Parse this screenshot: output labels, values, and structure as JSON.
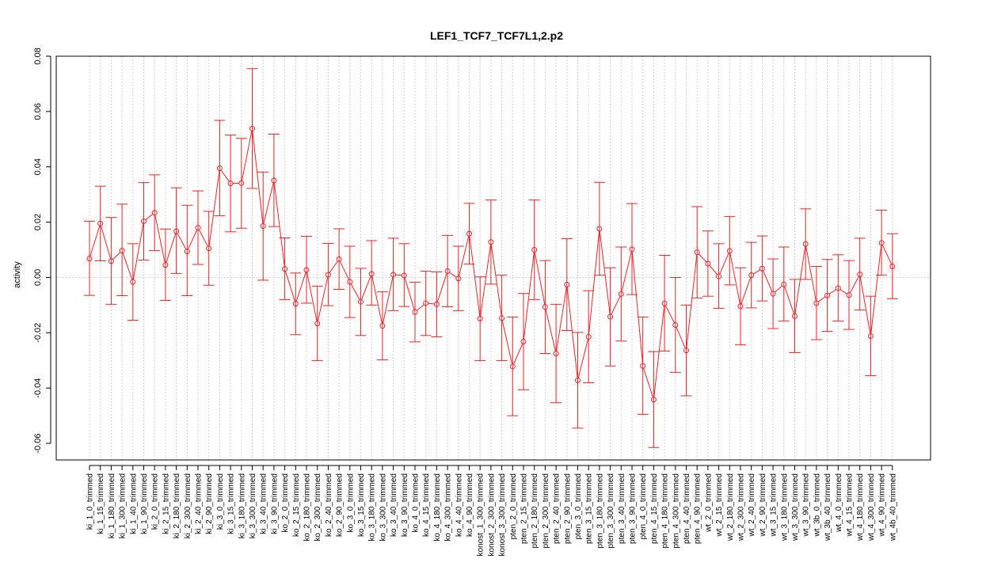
{
  "chart_data": {
    "type": "line",
    "title": "LEF1_TCF7_TCF7L1,2.p2",
    "xlabel": "",
    "ylabel": "activity",
    "ylim": [
      -0.066,
      0.08
    ],
    "yticks": [
      0.08,
      0.06,
      0.04,
      0.02,
      0.0,
      -0.02,
      -0.04,
      -0.06
    ],
    "ytick_labels": [
      "0.08",
      "0.06",
      "0.04",
      "0.02",
      "0.00",
      "-0.02",
      "-0.04",
      "-0.06"
    ],
    "grid": true,
    "colors": {
      "series": "#e8262b",
      "grid": "#d3d3d3"
    },
    "categories": [
      "ki_1_0_trimmed",
      "ki_1_15_trimmed",
      "ki_1_180_trimmed",
      "ki_1_300_trimmed",
      "ki_1_40_trimmed",
      "ki_1_90_trimmed",
      "ki_2_0_trimmed",
      "ki_2_15_trimmed",
      "ki_2_180_trimmed",
      "ki_2_300_trimmed",
      "ki_2_40_trimmed",
      "ki_2_90_trimmed",
      "ki_3_0_trimmed",
      "ki_3_15_trimmed",
      "ki_3_180_trimmed",
      "ki_3_300_trimmed",
      "ki_3_40_trimmed",
      "ki_3_90_trimmed",
      "ko_2_0_trimmed",
      "ko_2_15_trimmed",
      "ko_2_180_trimmed",
      "ko_2_300_trimmed",
      "ko_2_40_trimmed",
      "ko_2_90_trimmed",
      "ko_3_0_trimmed",
      "ko_3_15_trimmed",
      "ko_3_180_trimmed",
      "ko_3_300_trimmed",
      "ko_3_40_trimmed",
      "ko_3_90_trimmed",
      "ko_4_0_trimmed",
      "ko_4_15_trimmed",
      "ko_4_180_trimmed",
      "ko_4_300_trimmed",
      "ko_4_40_trimmed",
      "ko_4_90_trimmed",
      "konost_1_300_trimmed",
      "konost_2_300_trimmed",
      "konost_3_300_trimmed",
      "pten_2_0_trimmed",
      "pten_2_15_trimmed",
      "pten_2_180_trimmed",
      "pten_2_300_trimmed",
      "pten_2_40_trimmed",
      "pten_2_90_trimmed",
      "pten_3_0_trimmed",
      "pten_3_15_trimmed",
      "pten_3_180_trimmed",
      "pten_3_300_trimmed",
      "pten_3_40_trimmed",
      "pten_3_90_trimmed",
      "pten_4_0_trimmed",
      "pten_4_15_trimmed",
      "pten_4_180_trimmed",
      "pten_4_300_trimmed",
      "pten_4_40_trimmed",
      "pten_4_90_trimmed",
      "wt_2_0_trimmed",
      "wt_2_15_trimmed",
      "wt_2_180_trimmed",
      "wt_2_300_trimmed",
      "wt_2_40_trimmed",
      "wt_2_90_trimmed",
      "wt_3_15_trimmed",
      "wt_3_180_trimmed",
      "wt_3_300_trimmed",
      "wt_3_90_trimmed",
      "wt_3b_0_trimmed",
      "wt_3b_40_trimmed",
      "wt_4_0_trimmed",
      "wt_4_15_trimmed",
      "wt_4_180_trimmed",
      "wt_4_300_trimmed",
      "wt_4_90_trimmed",
      "wt_4b_40_trimmed"
    ],
    "values": [
      0.0068,
      0.0195,
      0.0059,
      0.0097,
      -0.0016,
      0.0203,
      0.0234,
      0.0045,
      0.0167,
      0.0094,
      0.018,
      0.0105,
      0.0395,
      0.034,
      0.0341,
      0.0538,
      0.0186,
      0.0351,
      0.0031,
      -0.0095,
      0.0027,
      -0.0167,
      0.001,
      0.0066,
      -0.0016,
      -0.0088,
      0.0013,
      -0.0175,
      0.001,
      0.0007,
      -0.0125,
      -0.0093,
      -0.0097,
      0.0023,
      -0.0004,
      0.0158,
      -0.0149,
      0.0128,
      -0.0147,
      -0.0322,
      -0.0232,
      0.01,
      -0.0107,
      -0.0275,
      -0.0026,
      -0.0372,
      -0.0215,
      0.0176,
      -0.0142,
      -0.006,
      0.0102,
      -0.032,
      -0.0442,
      -0.0094,
      -0.0172,
      -0.0264,
      0.0091,
      0.005,
      0.0004,
      0.0096,
      -0.0104,
      0.0008,
      0.0032,
      -0.0059,
      -0.0025,
      -0.014,
      0.0121,
      -0.0093,
      -0.0065,
      -0.0039,
      -0.0064,
      0.0011,
      -0.0212,
      0.0125,
      0.004
    ],
    "lower": [
      -0.0065,
      0.006,
      -0.0097,
      -0.0066,
      -0.0155,
      0.0063,
      0.0097,
      -0.0083,
      0.0014,
      -0.0066,
      0.0047,
      -0.0028,
      0.0223,
      0.0165,
      0.0178,
      0.0322,
      -0.001,
      0.0184,
      -0.008,
      -0.0207,
      -0.0093,
      -0.0301,
      -0.0102,
      -0.0043,
      -0.0145,
      -0.021,
      -0.01,
      -0.0298,
      -0.012,
      -0.0105,
      -0.0233,
      -0.021,
      -0.0215,
      -0.0106,
      -0.012,
      0.0048,
      -0.0301,
      -0.0024,
      -0.0301,
      -0.05,
      -0.0406,
      -0.008,
      -0.0275,
      -0.0453,
      -0.0192,
      -0.0545,
      -0.0381,
      0.0008,
      -0.032,
      -0.023,
      -0.0062,
      -0.0495,
      -0.0615,
      -0.0266,
      -0.0343,
      -0.0428,
      -0.0074,
      -0.0068,
      -0.0112,
      -0.0027,
      -0.0244,
      -0.011,
      -0.0085,
      -0.0185,
      -0.0158,
      -0.0272,
      -0.0007,
      -0.0225,
      -0.0195,
      -0.0158,
      -0.0188,
      -0.0118,
      -0.0355,
      0.0008,
      -0.0077
    ],
    "upper": [
      0.0203,
      0.033,
      0.0217,
      0.0265,
      0.0122,
      0.0343,
      0.0371,
      0.0175,
      0.0324,
      0.0261,
      0.0313,
      0.0239,
      0.0568,
      0.0515,
      0.0503,
      0.0755,
      0.0381,
      0.0518,
      0.0143,
      0.0016,
      0.0149,
      -0.0032,
      0.0123,
      0.0176,
      0.0113,
      0.0033,
      0.0133,
      -0.0052,
      0.0142,
      0.0122,
      -0.0017,
      0.0023,
      0.002,
      0.0152,
      0.0113,
      0.0268,
      0.0002,
      0.028,
      0.0008,
      -0.0143,
      -0.0058,
      0.028,
      0.0061,
      -0.0097,
      0.014,
      -0.0199,
      -0.0048,
      0.0344,
      0.0035,
      0.011,
      0.0267,
      -0.0143,
      -0.0268,
      0.008,
      0.0,
      -0.01,
      0.0256,
      0.0168,
      0.0122,
      0.022,
      0.0035,
      0.0127,
      0.015,
      0.0067,
      0.011,
      -0.0007,
      0.0248,
      0.004,
      0.0065,
      0.0082,
      0.0061,
      0.0142,
      -0.0068,
      0.0243,
      0.0158
    ]
  }
}
